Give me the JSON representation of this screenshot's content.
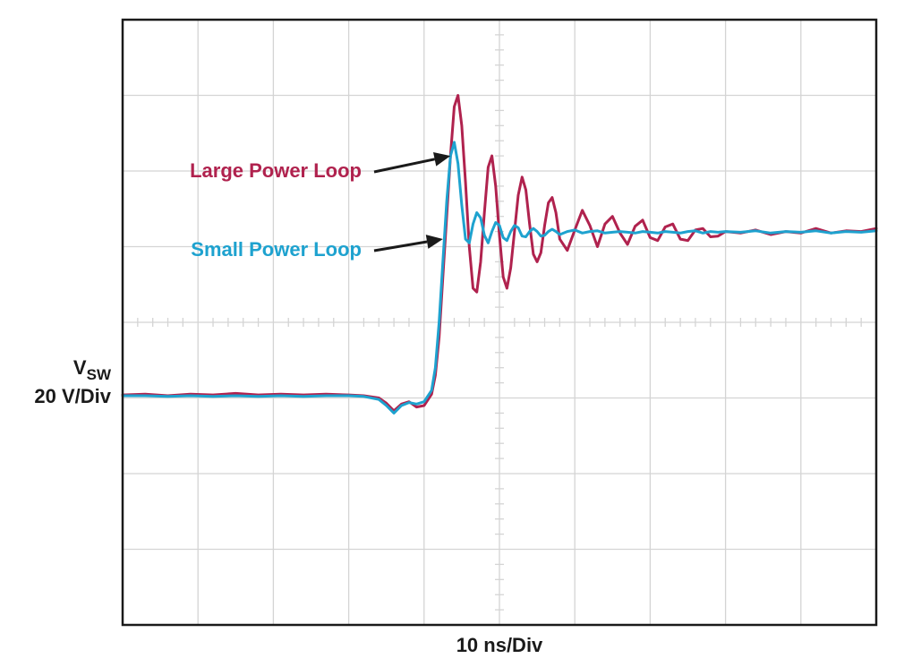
{
  "chart_data": {
    "type": "line",
    "xlabel": "10 ns/Div",
    "ylabel_main": "V",
    "ylabel_sub": "SW",
    "ylabel_scale": "20 V/Div",
    "x_divisions": 10,
    "y_divisions": 8,
    "xlim": [
      0,
      10
    ],
    "ylim": [
      0,
      8
    ],
    "grid": true,
    "legend": "inline annotations with arrows",
    "colors": {
      "large": "#b0224e",
      "small": "#1ea2cf",
      "grid": "#d4d4d4",
      "frame": "#1a1a1a",
      "text": "#1a1a1a"
    },
    "series": [
      {
        "name": "Large Power Loop",
        "color": "#b0224e",
        "x": [
          0,
          0.3,
          0.6,
          0.9,
          1.2,
          1.5,
          1.8,
          2.1,
          2.4,
          2.7,
          3.0,
          3.2,
          3.4,
          3.5,
          3.6,
          3.7,
          3.8,
          3.9,
          4.0,
          4.1,
          4.15,
          4.2,
          4.25,
          4.3,
          4.35,
          4.4,
          4.45,
          4.5,
          4.55,
          4.6,
          4.65,
          4.7,
          4.75,
          4.8,
          4.85,
          4.9,
          4.95,
          5.0,
          5.05,
          5.1,
          5.15,
          5.2,
          5.25,
          5.3,
          5.35,
          5.4,
          5.45,
          5.5,
          5.55,
          5.6,
          5.65,
          5.7,
          5.75,
          5.8,
          5.9,
          6.0,
          6.1,
          6.2,
          6.3,
          6.4,
          6.5,
          6.6,
          6.7,
          6.8,
          6.9,
          7.0,
          7.1,
          7.2,
          7.3,
          7.4,
          7.5,
          7.6,
          7.7,
          7.8,
          7.9,
          8.0,
          8.2,
          8.4,
          8.6,
          8.8,
          9.0,
          9.2,
          9.4,
          9.6,
          9.8,
          10.0
        ],
        "y": [
          3.04,
          3.05,
          3.03,
          3.05,
          3.04,
          3.06,
          3.04,
          3.05,
          3.04,
          3.05,
          3.04,
          3.03,
          3.0,
          2.93,
          2.83,
          2.92,
          2.95,
          2.88,
          2.9,
          3.05,
          3.3,
          3.8,
          4.6,
          5.4,
          6.2,
          6.85,
          7.0,
          6.6,
          5.85,
          5.0,
          4.45,
          4.4,
          4.8,
          5.45,
          6.05,
          6.2,
          5.8,
          5.15,
          4.6,
          4.45,
          4.72,
          5.2,
          5.68,
          5.92,
          5.75,
          5.3,
          4.9,
          4.8,
          4.92,
          5.28,
          5.58,
          5.65,
          5.45,
          5.1,
          4.95,
          5.22,
          5.48,
          5.28,
          5.0,
          5.3,
          5.4,
          5.18,
          5.03,
          5.27,
          5.35,
          5.12,
          5.08,
          5.26,
          5.3,
          5.1,
          5.08,
          5.22,
          5.24,
          5.13,
          5.14,
          5.2,
          5.18,
          5.22,
          5.16,
          5.2,
          5.18,
          5.24,
          5.18,
          5.21,
          5.2,
          5.24
        ]
      },
      {
        "name": "Small Power Loop",
        "color": "#1ea2cf",
        "x": [
          0,
          0.3,
          0.6,
          0.9,
          1.2,
          1.5,
          1.8,
          2.1,
          2.4,
          2.7,
          3.0,
          3.2,
          3.4,
          3.5,
          3.6,
          3.7,
          3.8,
          3.9,
          4.0,
          4.1,
          4.15,
          4.2,
          4.25,
          4.3,
          4.35,
          4.4,
          4.45,
          4.5,
          4.55,
          4.6,
          4.65,
          4.7,
          4.75,
          4.8,
          4.85,
          4.9,
          4.95,
          5.0,
          5.05,
          5.1,
          5.15,
          5.2,
          5.25,
          5.3,
          5.35,
          5.4,
          5.45,
          5.5,
          5.55,
          5.6,
          5.65,
          5.7,
          5.75,
          5.8,
          5.9,
          6.0,
          6.1,
          6.2,
          6.3,
          6.4,
          6.5,
          6.6,
          6.7,
          6.8,
          6.9,
          7.0,
          7.1,
          7.2,
          7.3,
          7.4,
          7.5,
          7.6,
          7.7,
          7.8,
          7.9,
          8.0,
          8.2,
          8.4,
          8.6,
          8.8,
          9.0,
          9.2,
          9.4,
          9.6,
          9.8,
          10.0
        ],
        "y": [
          3.03,
          3.03,
          3.02,
          3.03,
          3.02,
          3.03,
          3.02,
          3.03,
          3.02,
          3.03,
          3.03,
          3.02,
          2.98,
          2.9,
          2.8,
          2.9,
          2.94,
          2.92,
          2.95,
          3.1,
          3.4,
          4.0,
          4.8,
          5.6,
          6.2,
          6.38,
          6.1,
          5.55,
          5.1,
          5.05,
          5.3,
          5.45,
          5.38,
          5.15,
          5.05,
          5.2,
          5.32,
          5.28,
          5.12,
          5.08,
          5.2,
          5.28,
          5.25,
          5.14,
          5.13,
          5.2,
          5.24,
          5.2,
          5.14,
          5.15,
          5.2,
          5.23,
          5.2,
          5.16,
          5.2,
          5.22,
          5.18,
          5.2,
          5.21,
          5.18,
          5.19,
          5.2,
          5.19,
          5.18,
          5.2,
          5.19,
          5.18,
          5.2,
          5.19,
          5.18,
          5.2,
          5.21,
          5.18,
          5.2,
          5.19,
          5.2,
          5.19,
          5.21,
          5.18,
          5.2,
          5.19,
          5.21,
          5.18,
          5.2,
          5.19,
          5.21
        ]
      }
    ],
    "annotations": [
      {
        "text": "Large Power Loop",
        "color": "#b0224e",
        "arrow_to": [
          4.35,
          6.2
        ]
      },
      {
        "text": "Small Power Loop",
        "color": "#1ea2cf",
        "arrow_to": [
          4.25,
          5.1
        ]
      }
    ]
  }
}
